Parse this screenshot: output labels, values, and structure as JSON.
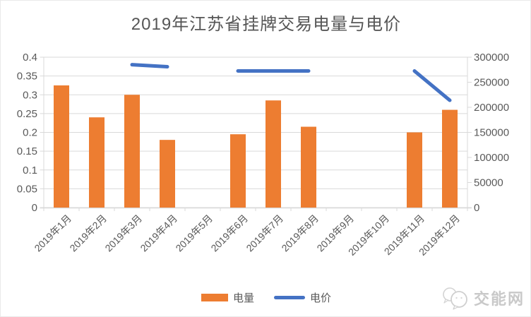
{
  "title": "2019年江苏省挂牌交易电量与电价",
  "chart_data": {
    "type": "bar",
    "subtype": "combo-bar-line",
    "title": "2019年江苏省挂牌交易电量与电价",
    "categories": [
      "2019年1月",
      "2019年2月",
      "2019年3月",
      "2019年4月",
      "2019年5月",
      "2019年6月",
      "2019年7月",
      "2019年8月",
      "2019年9月",
      "2019年10月",
      "2019年11月",
      "2019年12月"
    ],
    "series": [
      {
        "name": "电量",
        "type": "bar",
        "axis": "left",
        "color": "#ED7D31",
        "values": [
          0.325,
          0.24,
          0.3,
          0.18,
          null,
          0.195,
          0.285,
          0.215,
          null,
          null,
          0.2,
          0.26
        ]
      },
      {
        "name": "电价",
        "type": "line",
        "axis": "right",
        "color": "#4472C4",
        "values": [
          null,
          null,
          285000,
          281000,
          null,
          272500,
          272500,
          272500,
          null,
          null,
          272500,
          214000
        ]
      }
    ],
    "left_axis": {
      "range": [
        0,
        0.4
      ],
      "ticks": [
        "0.4",
        "0.35",
        "0.3",
        "0.25",
        "0.2",
        "0.15",
        "0.1",
        "0.05",
        "0"
      ]
    },
    "right_axis": {
      "range": [
        0,
        300000
      ],
      "ticks": [
        "300000",
        "250000",
        "200000",
        "150000",
        "100000",
        "50000",
        "0"
      ]
    },
    "grid": true,
    "legend_position": "bottom"
  },
  "legend": {
    "items": [
      {
        "label": "电量",
        "color": "#ED7D31",
        "marker": "bar"
      },
      {
        "label": "电价",
        "color": "#4472C4",
        "marker": "line"
      }
    ]
  },
  "watermark": {
    "text": "交能网",
    "icon": "speech-bubbles-logo",
    "color": "#c9c9c9"
  },
  "colors": {
    "bar": "#ED7D31",
    "line": "#4472C4",
    "grid": "#D9D9D9",
    "axis_text": "#595959",
    "title_text": "#565656"
  }
}
